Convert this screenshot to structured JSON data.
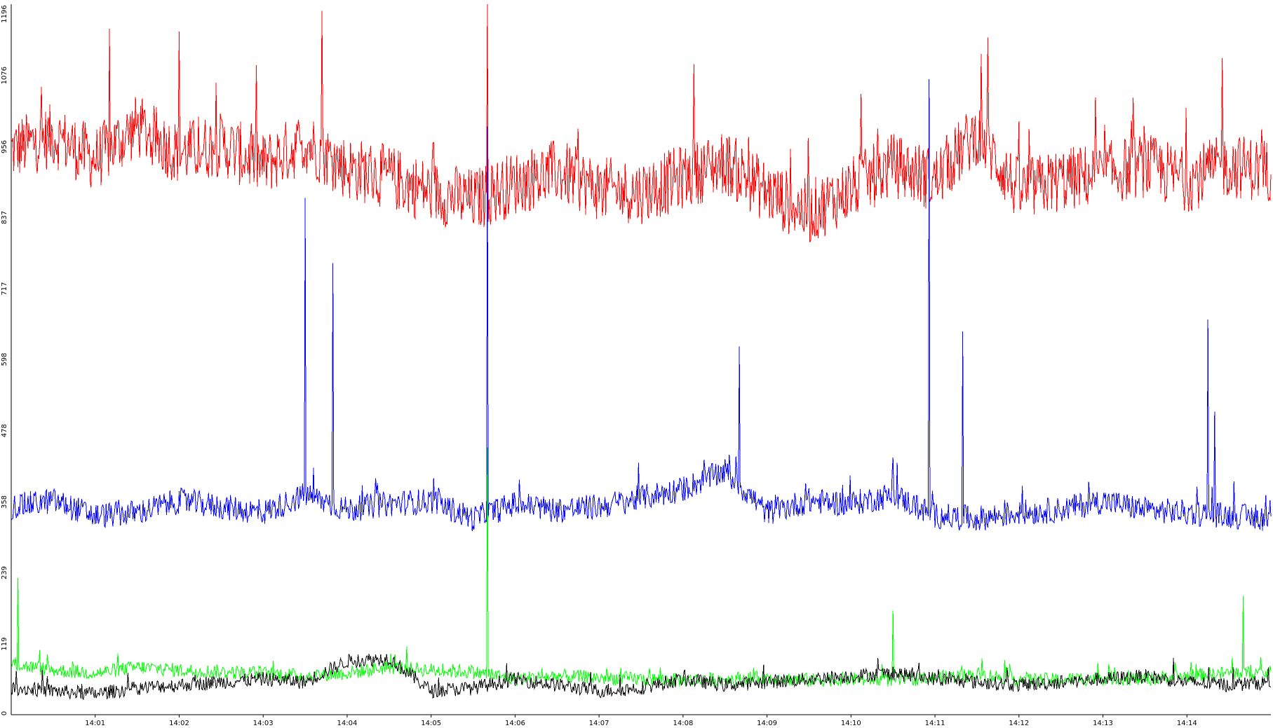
{
  "chart_data": {
    "type": "line",
    "title": "",
    "xlabel": "",
    "ylabel": "",
    "ylim": [
      0,
      1196
    ],
    "xlim": [
      "14:00:00",
      "14:15:00"
    ],
    "grid": false,
    "legend": "none",
    "y_ticks": [
      "0",
      "119",
      "239",
      "358",
      "478",
      "598",
      "717",
      "837",
      "956",
      "1076",
      "1196"
    ],
    "x_ticks": [
      "14:01",
      "14:02",
      "14:03",
      "14:04",
      "14:05",
      "14:06",
      "14:07",
      "14:08",
      "14:09",
      "14:10",
      "14:11",
      "14:12",
      "14:13",
      "14:14"
    ],
    "series": [
      {
        "color": "#ff0000",
        "x": [
          "14:00:00",
          "14:00:30",
          "14:01:00",
          "14:01:30",
          "14:02:00",
          "14:02:30",
          "14:03:00",
          "14:03:30",
          "14:04:00",
          "14:04:30",
          "14:05:00",
          "14:05:30",
          "14:06:00",
          "14:06:30",
          "14:07:00",
          "14:07:30",
          "14:08:00",
          "14:08:30",
          "14:09:00",
          "14:09:30",
          "14:10:00",
          "14:10:30",
          "14:11:00",
          "14:11:30",
          "14:12:00",
          "14:12:30",
          "14:13:00",
          "14:13:30",
          "14:14:00",
          "14:14:30",
          "14:15:00"
        ],
        "values": [
          950,
          975,
          935,
          990,
          945,
          960,
          925,
          965,
          920,
          905,
          880,
          865,
          895,
          915,
          885,
          880,
          905,
          930,
          880,
          845,
          885,
          925,
          900,
          980,
          880,
          900,
          910,
          925,
          900,
          925,
          915
        ],
        "spikes": [
          [
            "14:01:10",
            1155
          ],
          [
            "14:02:00",
            1150
          ],
          [
            "14:03:42",
            1185
          ],
          [
            "14:05:40",
            1196
          ],
          [
            "14:08:08",
            1095
          ],
          [
            "14:11:38",
            1140
          ],
          [
            "14:14:25",
            1105
          ]
        ]
      },
      {
        "color": "#0000ff",
        "x": [
          "14:00:00",
          "14:00:30",
          "14:01:00",
          "14:01:30",
          "14:02:00",
          "14:02:30",
          "14:03:00",
          "14:03:30",
          "14:04:00",
          "14:04:30",
          "14:05:00",
          "14:05:30",
          "14:06:00",
          "14:06:30",
          "14:07:00",
          "14:07:30",
          "14:08:00",
          "14:08:30",
          "14:09:00",
          "14:09:30",
          "14:10:00",
          "14:10:30",
          "14:11:00",
          "14:11:30",
          "14:12:00",
          "14:12:30",
          "14:13:00",
          "14:13:30",
          "14:14:00",
          "14:14:30",
          "14:15:00"
        ],
        "values": [
          350,
          360,
          335,
          340,
          360,
          350,
          340,
          370,
          345,
          355,
          360,
          330,
          355,
          345,
          350,
          365,
          380,
          410,
          340,
          360,
          355,
          370,
          335,
          330,
          340,
          345,
          360,
          345,
          340,
          335,
          330
        ],
        "spikes": [
          [
            "14:03:30",
            870
          ],
          [
            "14:03:50",
            760
          ],
          [
            "14:05:40",
            990
          ],
          [
            "14:08:40",
            620
          ],
          [
            "14:10:56",
            1070
          ],
          [
            "14:11:20",
            645
          ],
          [
            "14:14:15",
            665
          ],
          [
            "14:14:20",
            510
          ]
        ]
      },
      {
        "color": "#00ff00",
        "x": [
          "14:00:00",
          "14:00:30",
          "14:01:00",
          "14:01:30",
          "14:02:00",
          "14:02:30",
          "14:03:00",
          "14:03:30",
          "14:04:00",
          "14:04:30",
          "14:05:00",
          "14:05:30",
          "14:06:00",
          "14:06:30",
          "14:07:00",
          "14:07:30",
          "14:08:00",
          "14:08:30",
          "14:09:00",
          "14:09:30",
          "14:10:00",
          "14:10:30",
          "14:11:00",
          "14:11:30",
          "14:12:00",
          "14:12:30",
          "14:13:00",
          "14:13:30",
          "14:14:00",
          "14:14:30",
          "14:15:00"
        ],
        "values": [
          85,
          75,
          70,
          80,
          75,
          72,
          70,
          65,
          70,
          80,
          75,
          72,
          60,
          65,
          62,
          60,
          58,
          60,
          62,
          58,
          60,
          58,
          62,
          68,
          60,
          58,
          62,
          60,
          65,
          70,
          70
        ],
        "spikes": [
          [
            "14:00:05",
            230
          ],
          [
            "14:05:40",
            450
          ],
          [
            "14:10:30",
            175
          ],
          [
            "14:14:40",
            200
          ]
        ]
      },
      {
        "color": "#000000",
        "x": [
          "14:00:00",
          "14:00:30",
          "14:01:00",
          "14:01:30",
          "14:02:00",
          "14:02:30",
          "14:03:00",
          "14:03:30",
          "14:04:00",
          "14:04:30",
          "14:05:00",
          "14:05:30",
          "14:06:00",
          "14:06:30",
          "14:07:00",
          "14:07:30",
          "14:08:00",
          "14:08:30",
          "14:09:00",
          "14:09:30",
          "14:10:00",
          "14:10:30",
          "14:11:00",
          "14:11:30",
          "14:12:00",
          "14:12:30",
          "14:13:00",
          "14:13:30",
          "14:14:00",
          "14:14:30",
          "14:15:00"
        ],
        "values": [
          45,
          40,
          35,
          45,
          50,
          55,
          60,
          55,
          90,
          95,
          40,
          45,
          60,
          50,
          40,
          45,
          60,
          50,
          55,
          60,
          65,
          70,
          60,
          55,
          50,
          55,
          60,
          65,
          55,
          50,
          55
        ],
        "spikes": []
      }
    ]
  }
}
